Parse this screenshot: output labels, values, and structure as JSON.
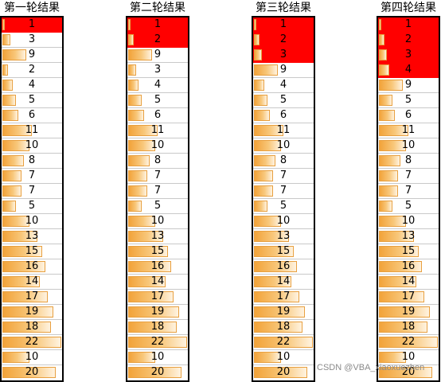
{
  "columns": [
    {
      "title": "第一轮结果",
      "highlight_rows": 1,
      "values": [
        1,
        3,
        9,
        2,
        4,
        5,
        6,
        11,
        10,
        8,
        7,
        7,
        5,
        10,
        13,
        15,
        16,
        14,
        17,
        19,
        18,
        22,
        10,
        20
      ]
    },
    {
      "title": "第二轮结果",
      "highlight_rows": 2,
      "values": [
        1,
        2,
        9,
        3,
        4,
        5,
        6,
        11,
        10,
        8,
        7,
        7,
        5,
        10,
        13,
        15,
        16,
        14,
        17,
        19,
        18,
        22,
        10,
        20
      ]
    },
    {
      "title": "第三轮结果",
      "highlight_rows": 3,
      "values": [
        1,
        2,
        3,
        9,
        4,
        5,
        6,
        11,
        10,
        8,
        7,
        7,
        5,
        10,
        13,
        15,
        16,
        14,
        17,
        19,
        18,
        22,
        10,
        20
      ]
    },
    {
      "title": "第四轮结果",
      "highlight_rows": 4,
      "values": [
        1,
        2,
        3,
        4,
        9,
        5,
        6,
        11,
        10,
        8,
        7,
        7,
        5,
        10,
        13,
        15,
        16,
        14,
        17,
        19,
        18,
        22,
        10,
        20
      ]
    }
  ],
  "bar_max": 22,
  "colors": {
    "highlight": "#ff0000",
    "bar_start": "#f2a33a",
    "bar_end": "#fff3e0"
  },
  "watermark": "CSDN @VBA_xiaoxuezhen"
}
